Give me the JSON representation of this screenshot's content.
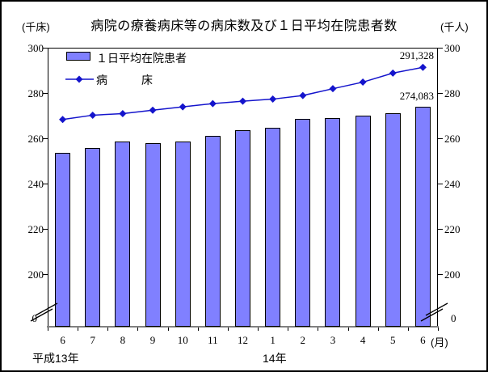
{
  "title": "病院の療養病床等の病床数及び１日平均在院患者数",
  "axis_units": {
    "left": "(千床)",
    "right": "(千人)"
  },
  "legend": {
    "bar_label": "１日平均在院患者",
    "line_label": "病　　　床"
  },
  "chart_data": {
    "type": "bar+line",
    "categories": [
      "6",
      "7",
      "8",
      "9",
      "10",
      "11",
      "12",
      "1",
      "2",
      "3",
      "4",
      "5",
      "6"
    ],
    "month_unit": "(月)",
    "year_labels": [
      {
        "label": "平成13年"
      },
      {
        "label": "14年"
      }
    ],
    "series": [
      {
        "name": "１日平均在院患者",
        "type": "bar",
        "axis": "right",
        "unit": "千人",
        "values": [
          253.5,
          255.7,
          258.4,
          257.8,
          258.7,
          261.2,
          263.4,
          264.7,
          268.4,
          269.0,
          270.1,
          271.1,
          274.083
        ]
      },
      {
        "name": "病床",
        "type": "line",
        "axis": "left",
        "unit": "千床",
        "values": [
          268.3,
          270.2,
          270.9,
          272.4,
          273.9,
          275.3,
          276.4,
          277.3,
          278.9,
          281.9,
          284.8,
          288.8,
          291.328
        ]
      }
    ],
    "annotations": [
      {
        "target": "line-last",
        "text": "291,328"
      },
      {
        "target": "bar-last",
        "text": "274,083"
      }
    ],
    "yticks": [
      300,
      280,
      260,
      240,
      220,
      200
    ],
    "zero_label": "0",
    "axis_break": true,
    "ylim": [
      200,
      300
    ],
    "legend_position": "top-left-inside",
    "grid": false
  },
  "colors": {
    "bar_fill": "#8080FF",
    "line": "#1414CC",
    "axis": "#000000",
    "x_axis_line": "#808080",
    "background": "#FFFFFF"
  }
}
